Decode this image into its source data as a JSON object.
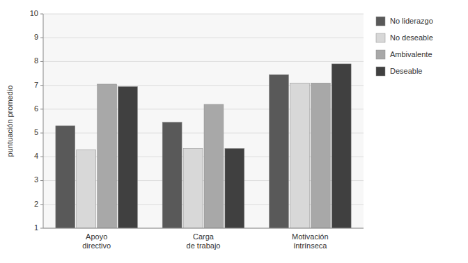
{
  "chart_data": {
    "type": "bar",
    "categories": [
      "Apoyo\ndirectivo",
      "Carga\nde trabajo",
      "Motivación\níntrínseca"
    ],
    "series": [
      {
        "name": "No liderazgo",
        "color": "#595959",
        "values": [
          5.3,
          5.45,
          7.45
        ]
      },
      {
        "name": "No deseable",
        "color": "#d8d8d8",
        "values": [
          4.3,
          4.35,
          7.1
        ]
      },
      {
        "name": "Ambivalente",
        "color": "#a8a8a8",
        "values": [
          7.05,
          6.2,
          7.1
        ]
      },
      {
        "name": "Deseable",
        "color": "#404040",
        "values": [
          6.95,
          4.35,
          7.9
        ]
      }
    ],
    "y_label": "puntuación promedio",
    "ylim": [
      1,
      10
    ],
    "yticks": [
      1,
      2,
      3,
      4,
      5,
      6,
      7,
      8,
      9,
      10
    ],
    "grid": true,
    "legend": "right"
  }
}
